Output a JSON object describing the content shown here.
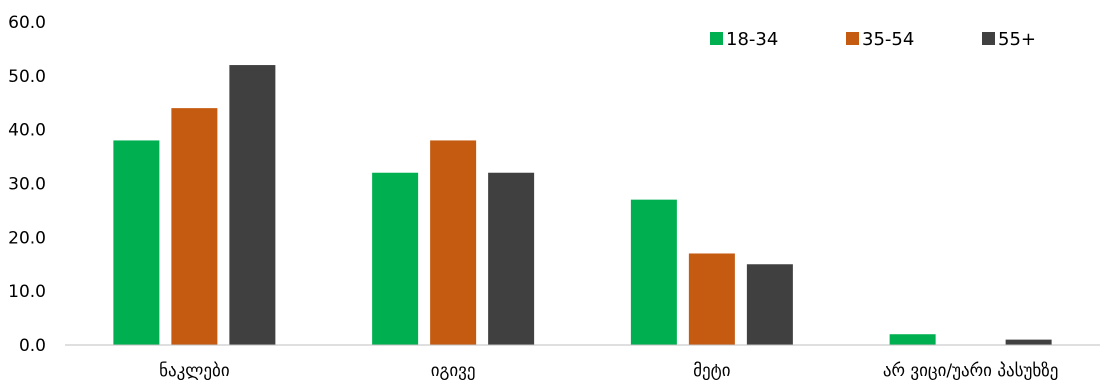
{
  "chart_data": {
    "type": "bar",
    "categories": [
      "ნაკლები",
      "იგივე",
      "მეტი",
      "არ ვიცი/უარი პასუხზე"
    ],
    "series": [
      {
        "name": "18-34",
        "values": [
          38,
          32,
          27,
          2
        ],
        "color": "#00b050"
      },
      {
        "name": "35-54",
        "values": [
          44,
          38,
          17,
          0
        ],
        "color": "#c55a11"
      },
      {
        "name": "55+",
        "values": [
          52,
          32,
          15,
          1
        ],
        "color": "#404040"
      }
    ],
    "ylim": [
      0,
      60
    ],
    "yticks": [
      "0.0",
      "10.0",
      "20.0",
      "30.0",
      "40.0",
      "50.0",
      "60.0"
    ],
    "grid": false,
    "legend_position": "top-right"
  }
}
